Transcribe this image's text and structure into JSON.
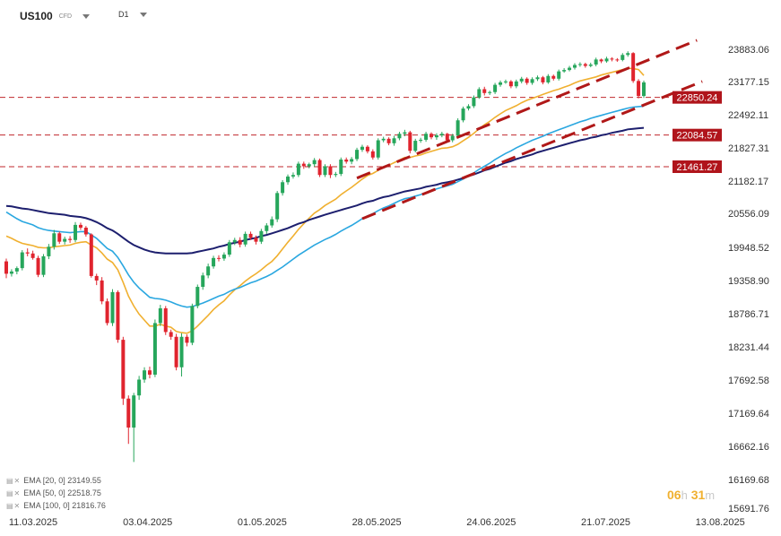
{
  "header": {
    "symbol": "US100",
    "symbol_type": "CFD",
    "timeframe": "D1"
  },
  "indicators": [
    {
      "label": "EMA [20, 0] 23149.55",
      "color": "#f0b030"
    },
    {
      "label": "EMA [50, 0] 22518.75",
      "color": "#2aa7e0"
    },
    {
      "label": "EMA [100, 0] 21816.76",
      "color": "#1d1f6e"
    }
  ],
  "timer": {
    "hours": "06",
    "h_unit": "h",
    "minutes": "31",
    "m_unit": "m"
  },
  "colors": {
    "bull": "#26a65b",
    "bear": "#e0242e",
    "level_line": "#c0272d",
    "channel": "#b01818",
    "price_tag_bg": "#b0141b"
  },
  "chart_data": {
    "type": "candlestick",
    "title": "",
    "ylim": [
      15691.76,
      24600
    ],
    "x_tick_labels": [
      "11.03.2025",
      "03.04.2025",
      "01.05.2025",
      "28.05.2025",
      "24.06.2025",
      "21.07.2025",
      "13.08.2025"
    ],
    "y_tick_labels": [
      23883.06,
      23177.15,
      22492.11,
      21827.31,
      21182.17,
      20556.09,
      19948.52,
      19358.9,
      18786.71,
      18231.44,
      17692.58,
      17169.64,
      16662.16,
      16169.68,
      15691.76
    ],
    "horizontal_levels": [
      {
        "label": "22850.24",
        "value": 22850.24
      },
      {
        "label": "22084.57",
        "value": 22084.57
      },
      {
        "label": "21461.27",
        "value": 21461.27
      }
    ],
    "channel_lines": [
      {
        "x": [
          66,
          130
        ],
        "y": [
          21240,
          24080
        ]
      },
      {
        "x": [
          67,
          131
        ],
        "y": [
          20460,
          23180
        ]
      }
    ],
    "candles": {
      "open": [
        19700,
        19480,
        19520,
        19580,
        19860,
        19840,
        19760,
        19460,
        19790,
        19960,
        20200,
        20050,
        20100,
        20080,
        20350,
        20300,
        20180,
        19440,
        19360,
        19000,
        18630,
        19160,
        18350,
        17400,
        16950,
        17450,
        17700,
        17850,
        17780,
        18630,
        18880,
        18480,
        18400,
        17900,
        18400,
        18300,
        18920,
        19250,
        19450,
        19610,
        19760,
        19750,
        19820,
        20040,
        20080,
        20000,
        20190,
        20120,
        20050,
        20240,
        20340,
        20450,
        20950,
        21160,
        21270,
        21300,
        21520,
        21470,
        21510,
        21590,
        21300,
        21470,
        21300,
        21320,
        21600,
        21560,
        21610,
        21790,
        21850,
        21760,
        21640,
        21980,
        22010,
        21920,
        22020,
        22110,
        22140,
        21770,
        21970,
        21990,
        22110,
        22040,
        22080,
        22110,
        21980,
        22070,
        22380,
        22620,
        22670,
        22850,
        23020,
        22940,
        22960,
        23110,
        23160,
        23180,
        23080,
        23180,
        23240,
        23150,
        23230,
        23270,
        23160,
        23300,
        23240,
        23400,
        23430,
        23480,
        23540,
        23560,
        23520,
        23550,
        23660,
        23620,
        23680,
        23660,
        23650,
        23760,
        23800,
        23190,
        22880
      ],
      "close": [
        19480,
        19520,
        19580,
        19860,
        19840,
        19760,
        19460,
        19790,
        19960,
        20200,
        20050,
        20100,
        20080,
        20350,
        20300,
        20180,
        19440,
        19360,
        19000,
        18630,
        19160,
        18350,
        17400,
        16950,
        17450,
        17700,
        17850,
        17780,
        18630,
        18880,
        18480,
        18400,
        17900,
        18400,
        18300,
        18920,
        19250,
        19450,
        19610,
        19760,
        19750,
        19820,
        20040,
        20080,
        20000,
        20190,
        20120,
        20050,
        20240,
        20340,
        20450,
        20950,
        21160,
        21270,
        21300,
        21520,
        21470,
        21510,
        21590,
        21300,
        21470,
        21300,
        21320,
        21600,
        21560,
        21610,
        21790,
        21850,
        21760,
        21640,
        21980,
        22010,
        21920,
        22020,
        22110,
        22140,
        21770,
        21970,
        21990,
        22110,
        22040,
        22080,
        22110,
        21980,
        22070,
        22380,
        22620,
        22670,
        22850,
        23020,
        22940,
        22960,
        23110,
        23160,
        23180,
        23080,
        23180,
        23240,
        23150,
        23230,
        23270,
        23160,
        23300,
        23240,
        23400,
        23430,
        23480,
        23540,
        23560,
        23520,
        23550,
        23660,
        23620,
        23680,
        23660,
        23650,
        23760,
        23800,
        23190,
        22880,
        23160
      ],
      "high": [
        19750,
        19560,
        19610,
        19900,
        19930,
        19890,
        19800,
        19830,
        20010,
        20260,
        20230,
        20140,
        20150,
        20400,
        20390,
        20330,
        20200,
        19480,
        19420,
        19050,
        19210,
        19190,
        18400,
        17450,
        17490,
        17760,
        17900,
        17910,
        18690,
        18940,
        18920,
        18520,
        18450,
        18460,
        18440,
        18960,
        19290,
        19500,
        19660,
        19800,
        19810,
        19860,
        20080,
        20120,
        20130,
        20230,
        20230,
        20160,
        20280,
        20380,
        20500,
        20990,
        21200,
        21310,
        21350,
        21560,
        21560,
        21540,
        21630,
        21620,
        21510,
        21510,
        21360,
        21640,
        21640,
        21650,
        21830,
        21890,
        21880,
        21800,
        22020,
        22050,
        22040,
        22070,
        22150,
        22190,
        22170,
        22010,
        22030,
        22150,
        22140,
        22120,
        22150,
        22130,
        22110,
        22420,
        22660,
        22710,
        22890,
        23060,
        23070,
        22990,
        23150,
        23200,
        23220,
        23210,
        23220,
        23280,
        23270,
        23270,
        23310,
        23300,
        23340,
        23330,
        23440,
        23470,
        23520,
        23580,
        23600,
        23590,
        23590,
        23700,
        23680,
        23720,
        23710,
        23690,
        23800,
        23840,
        23820,
        23230,
        23200
      ],
      "low": [
        19400,
        19430,
        19470,
        19540,
        19790,
        19730,
        19420,
        19420,
        19740,
        19910,
        20010,
        20000,
        20030,
        20040,
        20260,
        20140,
        19410,
        19280,
        18950,
        18590,
        18580,
        18300,
        17300,
        16700,
        16430,
        17380,
        17650,
        17720,
        17740,
        18580,
        18430,
        18350,
        17850,
        17750,
        18240,
        18260,
        18880,
        19200,
        19400,
        19570,
        19700,
        19710,
        19780,
        19990,
        19950,
        19960,
        20080,
        20000,
        20010,
        20190,
        20300,
        20400,
        20900,
        21110,
        21230,
        21260,
        21420,
        21430,
        21460,
        21260,
        21260,
        21240,
        21260,
        21280,
        21520,
        21510,
        21570,
        21750,
        21720,
        21600,
        21600,
        21940,
        21880,
        21870,
        21980,
        22060,
        21720,
        21740,
        21930,
        21950,
        22000,
        21990,
        22040,
        21940,
        21940,
        22030,
        22340,
        22580,
        22630,
        22820,
        22890,
        22900,
        22920,
        23070,
        23130,
        23040,
        23040,
        23140,
        23110,
        23110,
        23190,
        23120,
        23130,
        23200,
        23200,
        23370,
        23400,
        23440,
        23500,
        23480,
        23490,
        23510,
        23580,
        23590,
        23620,
        23610,
        23620,
        23720,
        23150,
        22830,
        22840
      ]
    },
    "series": [
      {
        "name": "EMA [20, 0]",
        "values": [
          20150,
          20110,
          20060,
          20020,
          20000,
          19980,
          19950,
          19940,
          19940,
          19960,
          19970,
          19980,
          19990,
          20020,
          20040,
          20050,
          19990,
          19940,
          19850,
          19740,
          19680,
          19550,
          19330,
          19090,
          18920,
          18780,
          18680,
          18580,
          18580,
          18610,
          18580,
          18560,
          18490,
          18470,
          18460,
          18500,
          18580,
          18670,
          18760,
          18860,
          18940,
          19010,
          19110,
          19200,
          19270,
          19350,
          19420,
          19480,
          19550,
          19630,
          19700,
          19800,
          19920,
          20040,
          20150,
          20270,
          20370,
          20470,
          20560,
          20630,
          20710,
          20770,
          20830,
          20920,
          20990,
          21060,
          21140,
          21220,
          21290,
          21330,
          21390,
          21450,
          21490,
          21540,
          21590,
          21640,
          21640,
          21670,
          21690,
          21730,
          21760,
          21790,
          21820,
          21830,
          21850,
          21900,
          21970,
          22040,
          22120,
          22210,
          22290,
          22360,
          22440,
          22510,
          22580,
          22630,
          22680,
          22740,
          22790,
          22830,
          22870,
          22910,
          22950,
          22990,
          23020,
          23060,
          23100,
          23150,
          23190,
          23220,
          23250,
          23280,
          23320,
          23350,
          23380,
          23410,
          23440,
          23470,
          23460,
          23440,
          23310
        ]
      },
      {
        "name": "EMA [50, 0]",
        "values": [
          20580,
          20520,
          20460,
          20410,
          20380,
          20350,
          20300,
          20270,
          20250,
          20240,
          20230,
          20220,
          20210,
          20220,
          20230,
          20230,
          20170,
          20110,
          20020,
          19930,
          19880,
          19770,
          19620,
          19460,
          19330,
          19230,
          19150,
          19070,
          19050,
          19040,
          19020,
          18990,
          18950,
          18920,
          18900,
          18910,
          18940,
          18970,
          19010,
          19050,
          19090,
          19120,
          19170,
          19210,
          19240,
          19280,
          19320,
          19350,
          19390,
          19430,
          19480,
          19540,
          19600,
          19670,
          19740,
          19810,
          19870,
          19930,
          19990,
          20040,
          20090,
          20130,
          20180,
          20240,
          20290,
          20340,
          20400,
          20460,
          20510,
          20550,
          20610,
          20660,
          20700,
          20750,
          20800,
          20840,
          20860,
          20890,
          20920,
          20960,
          20990,
          21030,
          21060,
          21090,
          21120,
          21170,
          21220,
          21280,
          21340,
          21410,
          21470,
          21530,
          21600,
          21660,
          21720,
          21770,
          21830,
          21880,
          21930,
          21980,
          22020,
          22060,
          22110,
          22150,
          22190,
          22230,
          22270,
          22310,
          22350,
          22380,
          22420,
          22450,
          22480,
          22510,
          22540,
          22570,
          22600,
          22630,
          22650,
          22660,
          22670
        ]
      },
      {
        "name": "EMA [100, 0]",
        "values": [
          20700,
          20690,
          20670,
          20650,
          20640,
          20620,
          20600,
          20580,
          20560,
          20550,
          20540,
          20530,
          20510,
          20500,
          20490,
          20470,
          20440,
          20400,
          20350,
          20290,
          20250,
          20190,
          20120,
          20050,
          19990,
          19950,
          19910,
          19880,
          19860,
          19850,
          19840,
          19840,
          19840,
          19840,
          19840,
          19850,
          19870,
          19890,
          19910,
          19930,
          19960,
          19980,
          20010,
          20030,
          20050,
          20080,
          20100,
          20120,
          20150,
          20170,
          20200,
          20230,
          20260,
          20290,
          20330,
          20370,
          20400,
          20440,
          20470,
          20500,
          20530,
          20560,
          20590,
          20620,
          20650,
          20680,
          20710,
          20750,
          20780,
          20800,
          20840,
          20870,
          20890,
          20920,
          20950,
          20980,
          21000,
          21020,
          21040,
          21070,
          21090,
          21110,
          21140,
          21160,
          21180,
          21210,
          21240,
          21280,
          21310,
          21350,
          21390,
          21420,
          21460,
          21500,
          21540,
          21570,
          21610,
          21640,
          21670,
          21700,
          21740,
          21770,
          21800,
          21830,
          21860,
          21890,
          21920,
          21950,
          21980,
          22000,
          22030,
          22050,
          22080,
          22100,
          22130,
          22150,
          22170,
          22200,
          22210,
          22220,
          22230
        ]
      }
    ]
  }
}
